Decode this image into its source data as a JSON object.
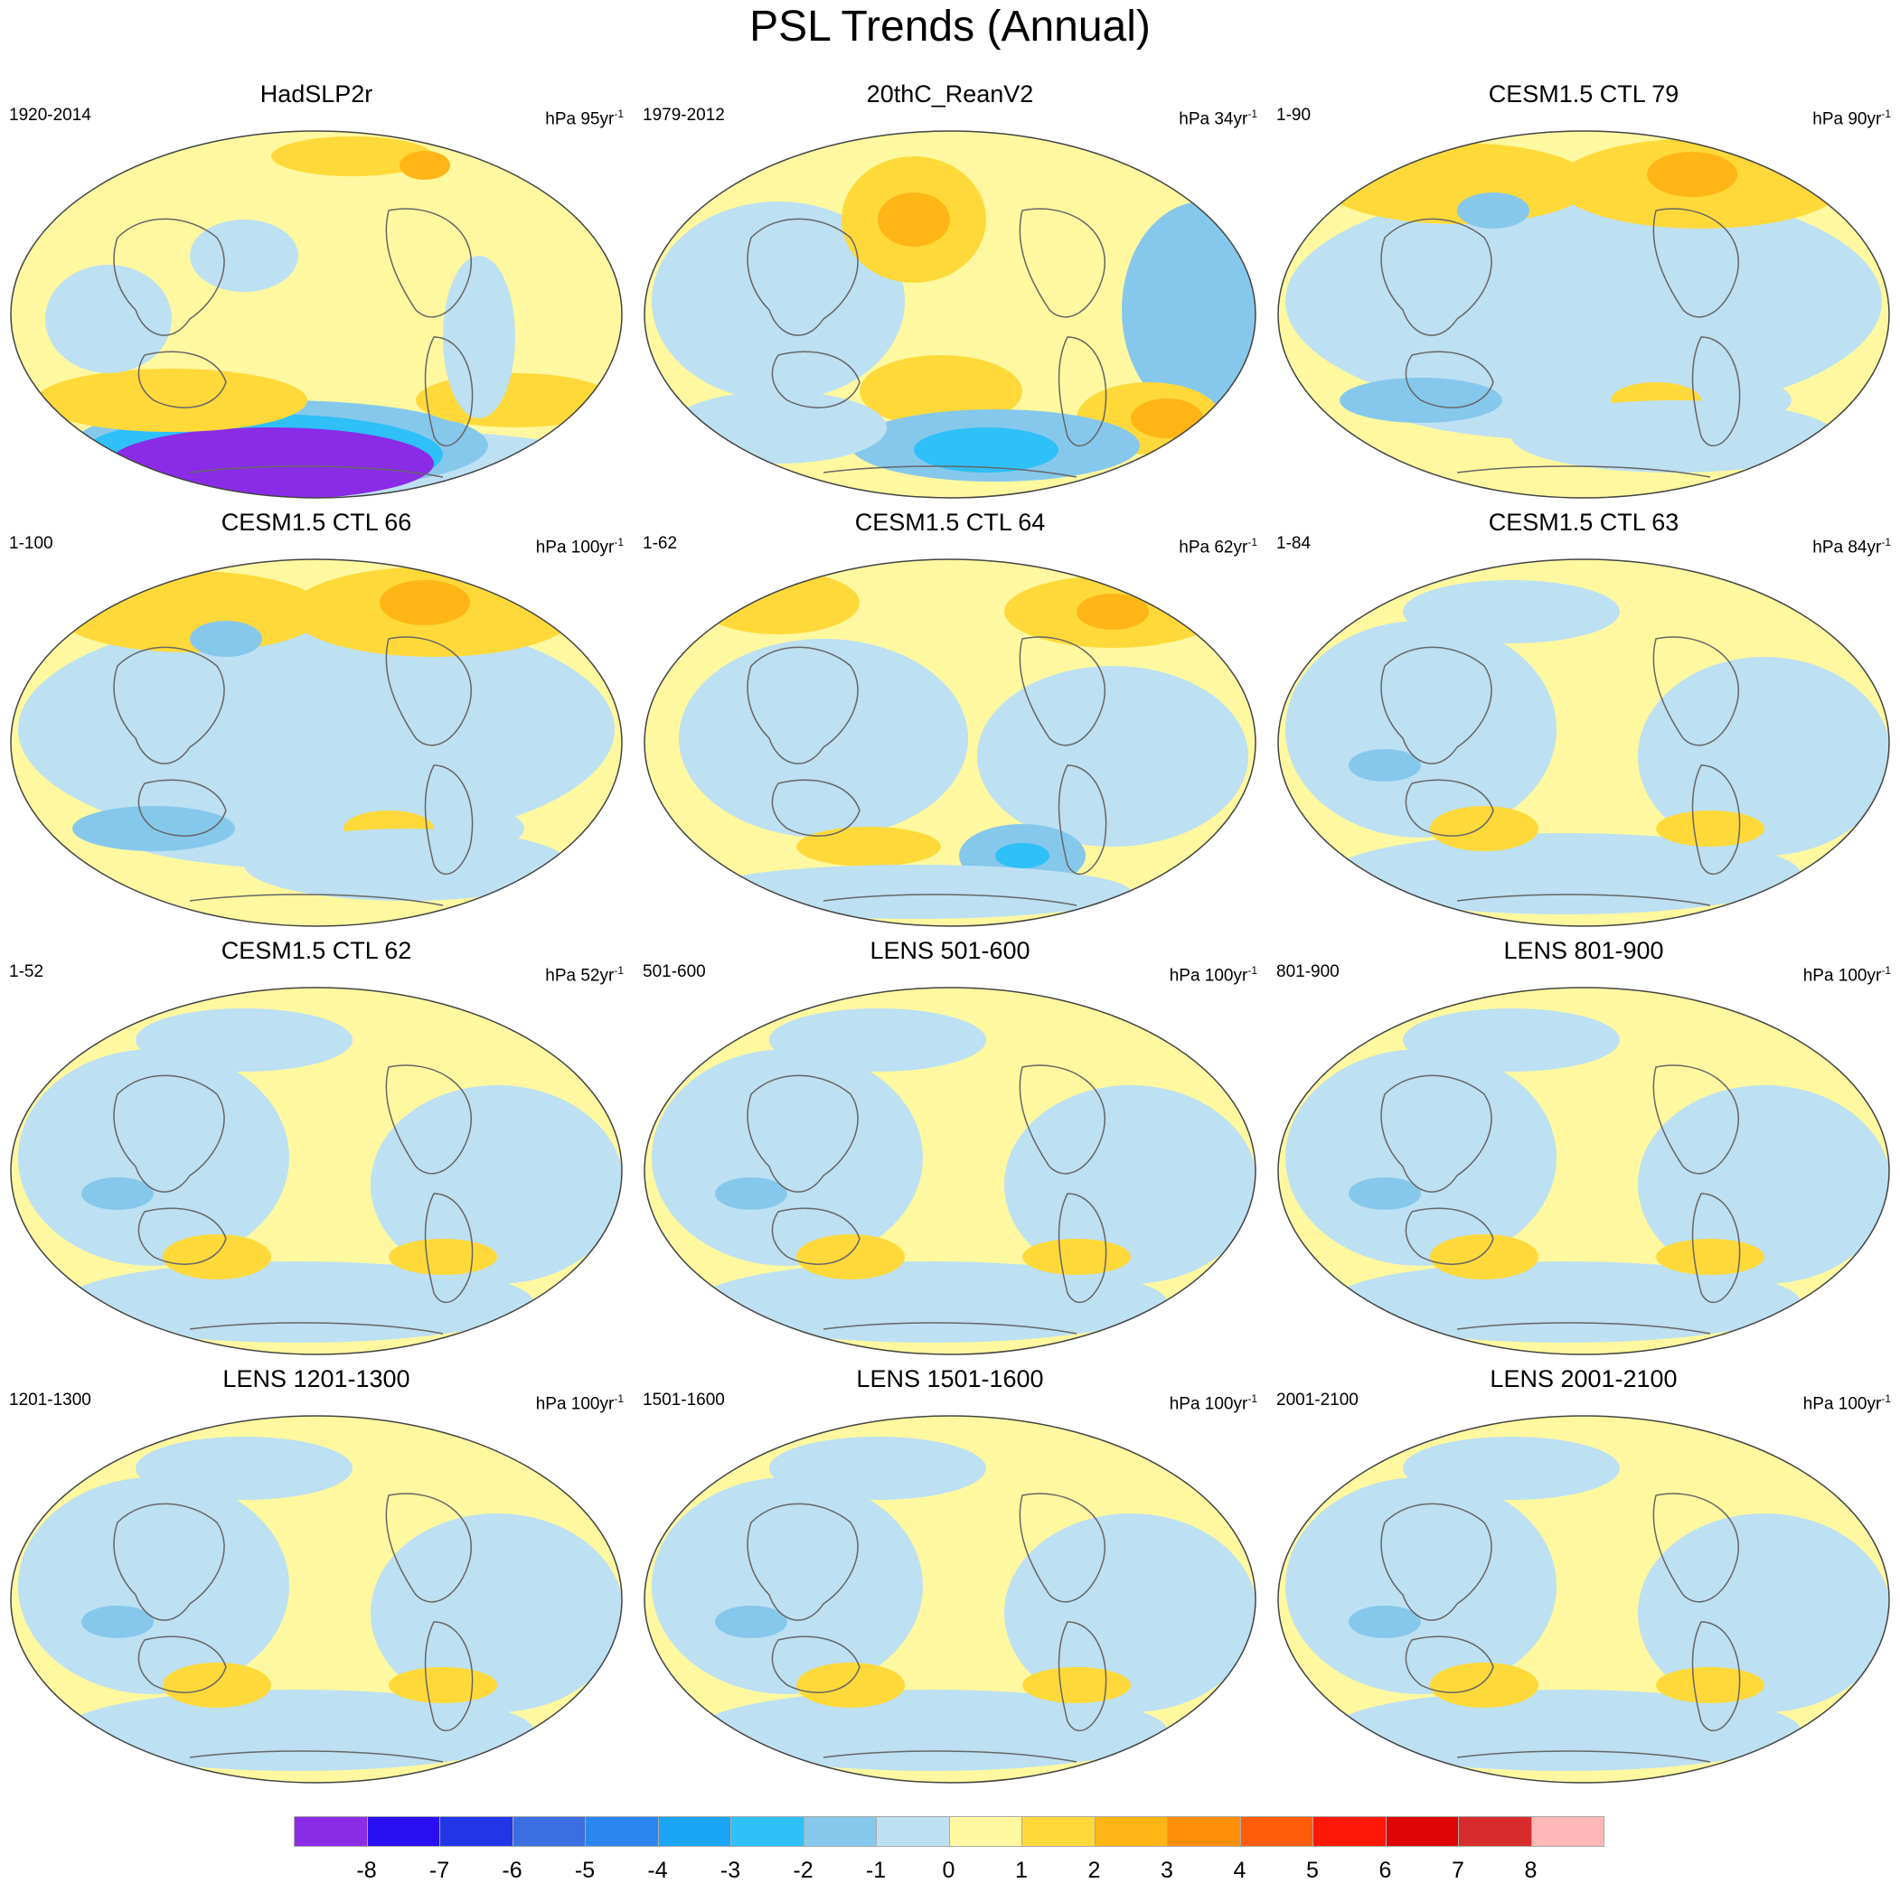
{
  "title": "PSL Trends (Annual)",
  "panels": [
    {
      "name": "HadSLP2r",
      "period": "1920-2014",
      "units_prefix": "hPa",
      "units_value": "95yr",
      "units_exp": "-1",
      "pattern": "observed_strong"
    },
    {
      "name": "20thC_ReanV2",
      "period": "1979-2012",
      "units_prefix": "hPa",
      "units_value": "34yr",
      "units_exp": "-1",
      "pattern": "reanalysis"
    },
    {
      "name": "CESM1.5 CTL 79",
      "period": "1-90",
      "units_prefix": "hPa",
      "units_value": "90yr",
      "units_exp": "-1",
      "pattern": "ctl_arctic_high"
    },
    {
      "name": "CESM1.5 CTL 66",
      "period": "1-100",
      "units_prefix": "hPa",
      "units_value": "100yr",
      "units_exp": "-1",
      "pattern": "ctl_arctic_high"
    },
    {
      "name": "CESM1.5 CTL 64",
      "period": "1-62",
      "units_prefix": "hPa",
      "units_value": "62yr",
      "units_exp": "-1",
      "pattern": "ctl_southern_low"
    },
    {
      "name": "CESM1.5 CTL 63",
      "period": "1-84",
      "units_prefix": "hPa",
      "units_value": "84yr",
      "units_exp": "-1",
      "pattern": "weak_mixed"
    },
    {
      "name": "CESM1.5 CTL 62",
      "period": "1-52",
      "units_prefix": "hPa",
      "units_value": "52yr",
      "units_exp": "-1",
      "pattern": "weak_mixed"
    },
    {
      "name": "LENS 501-600",
      "period": "501-600",
      "units_prefix": "hPa",
      "units_value": "100yr",
      "units_exp": "-1",
      "pattern": "weak_mixed"
    },
    {
      "name": "LENS 801-900",
      "period": "801-900",
      "units_prefix": "hPa",
      "units_value": "100yr",
      "units_exp": "-1",
      "pattern": "weak_mixed"
    },
    {
      "name": "LENS 1201-1300",
      "period": "1201-1300",
      "units_prefix": "hPa",
      "units_value": "100yr",
      "units_exp": "-1",
      "pattern": "weak_mixed"
    },
    {
      "name": "LENS 1501-1600",
      "period": "1501-1600",
      "units_prefix": "hPa",
      "units_value": "100yr",
      "units_exp": "-1",
      "pattern": "weak_mixed"
    },
    {
      "name": "LENS 2001-2100",
      "period": "2001-2100",
      "units_prefix": "hPa",
      "units_value": "100yr",
      "units_exp": "-1",
      "pattern": "weak_mixed"
    }
  ],
  "colorbar": {
    "colors": [
      "#8a2be6",
      "#2a10f0",
      "#2236e8",
      "#3b6ee0",
      "#2b86f0",
      "#1aa4f5",
      "#2ec0f7",
      "#86c8ec",
      "#bde0f2",
      "#fff8a0",
      "#ffd93a",
      "#ffb516",
      "#ff8e08",
      "#ff5c08",
      "#ff1808",
      "#dd0505",
      "#d82c2c",
      "#ffb8b8"
    ],
    "labels": [
      "-8",
      "-7",
      "-6",
      "-5",
      "-4",
      "-3",
      "-2",
      "-1",
      "0",
      "1",
      "2",
      "3",
      "4",
      "5",
      "6",
      "7",
      "8"
    ]
  },
  "legend_colors": {
    "ocean_bg": "#fff8a0",
    "neg_weak": "#bde0f2",
    "neg_mod": "#86c8ec",
    "neg_strong": "#2ec0f7",
    "pos_mod": "#ffd93a",
    "pos_strong": "#ffb516",
    "extreme_neg": "#8a2be6"
  }
}
